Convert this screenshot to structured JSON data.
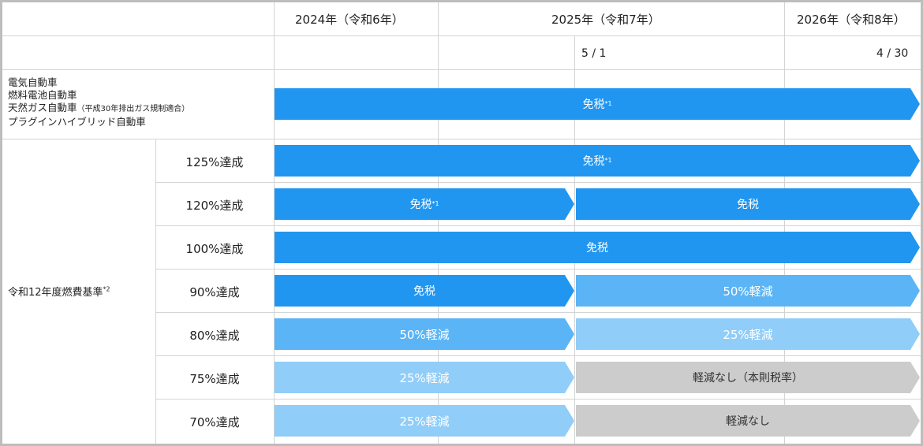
{
  "header": {
    "years": [
      "2024年（令和6年）",
      "2025年（令和7年）",
      "2026年（令和8年）"
    ],
    "dates": [
      "5 / 1",
      "4 / 30"
    ]
  },
  "vehicles": {
    "line1": "電気自動車",
    "line2": "燃料電池自動車",
    "line3_main": "天然ガス自動車",
    "line3_note": "（平成30年排出ガス規制適合）",
    "line4": "プラグインハイブリッド自動車"
  },
  "standard": {
    "label": "令和12年度燃費基準",
    "note": "*2"
  },
  "rows": [
    {
      "label": "125%達成"
    },
    {
      "label": "120%達成"
    },
    {
      "label": "100%達成"
    },
    {
      "label": "90%達成"
    },
    {
      "label": "80%達成"
    },
    {
      "label": "75%達成"
    },
    {
      "label": "70%達成"
    }
  ],
  "bars": {
    "ev": {
      "text": "免税",
      "note": "*1"
    },
    "r125": {
      "text": "免税",
      "note": "*1"
    },
    "r120a": {
      "text": "免税",
      "note": "*1"
    },
    "r120b": {
      "text": "免税"
    },
    "r100": {
      "text": "免税"
    },
    "r90a": {
      "text": "免税"
    },
    "r90b": {
      "text": "50%軽減"
    },
    "r80a": {
      "text": "50%軽減"
    },
    "r80b": {
      "text": "25%軽減"
    },
    "r75a": {
      "text": "25%軽減"
    },
    "r75b": {
      "text": "軽減なし（本則税率）"
    },
    "r70a": {
      "text": "25%軽減"
    },
    "r70b": {
      "text": "軽減なし"
    }
  },
  "colors": {
    "exempt": "#2196f0",
    "reduce50": "#5ab4f5",
    "reduce25": "#90cdf8",
    "none": "#cccccc",
    "grid": "#d4d4d4",
    "border": "#bdbdbd"
  }
}
